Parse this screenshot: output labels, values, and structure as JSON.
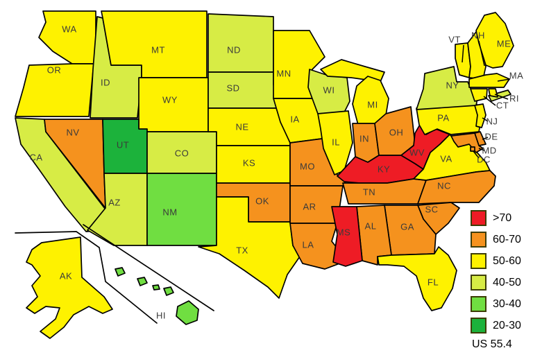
{
  "legend": {
    "items": [
      {
        "label": ">70",
        "color": "#ee1c25"
      },
      {
        "label": "60-70",
        "color": "#f5921e"
      },
      {
        "label": "50-60",
        "color": "#fef200"
      },
      {
        "label": "40-50",
        "color": "#d7ec45"
      },
      {
        "label": "30-40",
        "color": "#70de41"
      },
      {
        "label": "20-30",
        "color": "#1cb23b"
      }
    ],
    "note": "US 55.4"
  },
  "chart_data": {
    "type": "choropleth",
    "region": "United States",
    "us_value": 55.4,
    "bins": [
      ">70",
      "60-70",
      "50-60",
      "40-50",
      "30-40",
      "20-30"
    ],
    "bin_colors": {
      ">70": "#ee1c25",
      "60-70": "#f5921e",
      "50-60": "#fef200",
      "40-50": "#d7ec45",
      "30-40": "#70de41",
      "20-30": "#1cb23b"
    },
    "state_bins": {
      "WA": "50-60",
      "OR": "50-60",
      "CA": "40-50",
      "NV": "60-70",
      "ID": "40-50",
      "MT": "50-60",
      "WY": "50-60",
      "UT": "20-30",
      "CO": "40-50",
      "AZ": "40-50",
      "NM": "30-40",
      "ND": "40-50",
      "SD": "40-50",
      "NE": "50-60",
      "KS": "50-60",
      "OK": "60-70",
      "TX": "50-60",
      "MN": "50-60",
      "IA": "50-60",
      "MO": "60-70",
      "AR": "60-70",
      "LA": "60-70",
      "WI": "40-50",
      "IL": "50-60",
      "MI": "50-60",
      "IN": "60-70",
      "OH": "60-70",
      "KY": ">70",
      "TN": "60-70",
      "MS": ">70",
      "AL": "60-70",
      "GA": "60-70",
      "FL": "50-60",
      "SC": "60-70",
      "NC": "60-70",
      "VA": "50-60",
      "WV": ">70",
      "PA": "50-60",
      "NY": "40-50",
      "NJ": "50-60",
      "DE": "60-70",
      "MD": "60-70",
      "DC": "60-70",
      "CT": "50-60",
      "RI": "50-60",
      "MA": "50-60",
      "VT": "50-60",
      "NH": "50-60",
      "ME": "50-60",
      "AK": "50-60",
      "HI": "30-40"
    }
  }
}
